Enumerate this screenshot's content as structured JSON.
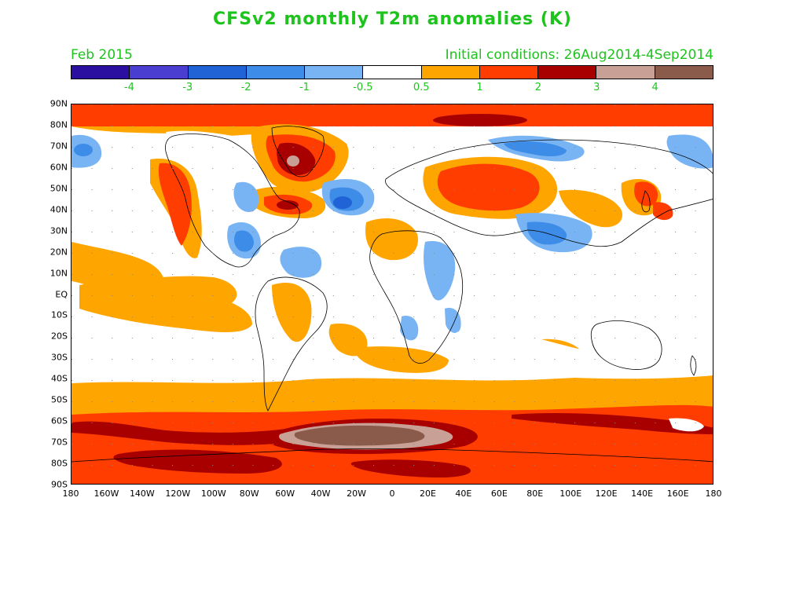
{
  "title": "CFSv2 monthly T2m anomalies (K)",
  "left_subtitle": "Feb 2015",
  "right_subtitle": "Initial conditions: 26Aug2014-4Sep2014",
  "colorbar": {
    "colors": [
      "#2b0fa0",
      "#4a3ed0",
      "#1f63d6",
      "#3c8ce8",
      "#78b4f4",
      "#ffffff",
      "#ffa500",
      "#ff3d00",
      "#a80000",
      "#c8a096",
      "#8a5a4a"
    ],
    "labels": [
      "-4",
      "-3",
      "-2",
      "-1",
      "-0.5",
      "0.5",
      "1",
      "2",
      "3",
      "4"
    ]
  },
  "lat_labels": [
    "90N",
    "80N",
    "70N",
    "60N",
    "50N",
    "40N",
    "30N",
    "20N",
    "10N",
    "EQ",
    "10S",
    "20S",
    "30S",
    "40S",
    "50S",
    "60S",
    "70S",
    "80S",
    "90S"
  ],
  "lon_labels": [
    "180",
    "160W",
    "140W",
    "120W",
    "100W",
    "80W",
    "60W",
    "40W",
    "20W",
    "0",
    "20E",
    "40E",
    "60E",
    "80E",
    "100E",
    "120E",
    "140E",
    "160E",
    "180"
  ],
  "colors": {
    "text_green": "#1ec31e",
    "orange": "#ffa500",
    "red": "#ff3d00",
    "darkred": "#a80000",
    "pink": "#c8a096",
    "brown": "#8a5a4a",
    "lightblue": "#78b4f4",
    "blue": "#3c8ce8",
    "midblue": "#1f63d6"
  }
}
